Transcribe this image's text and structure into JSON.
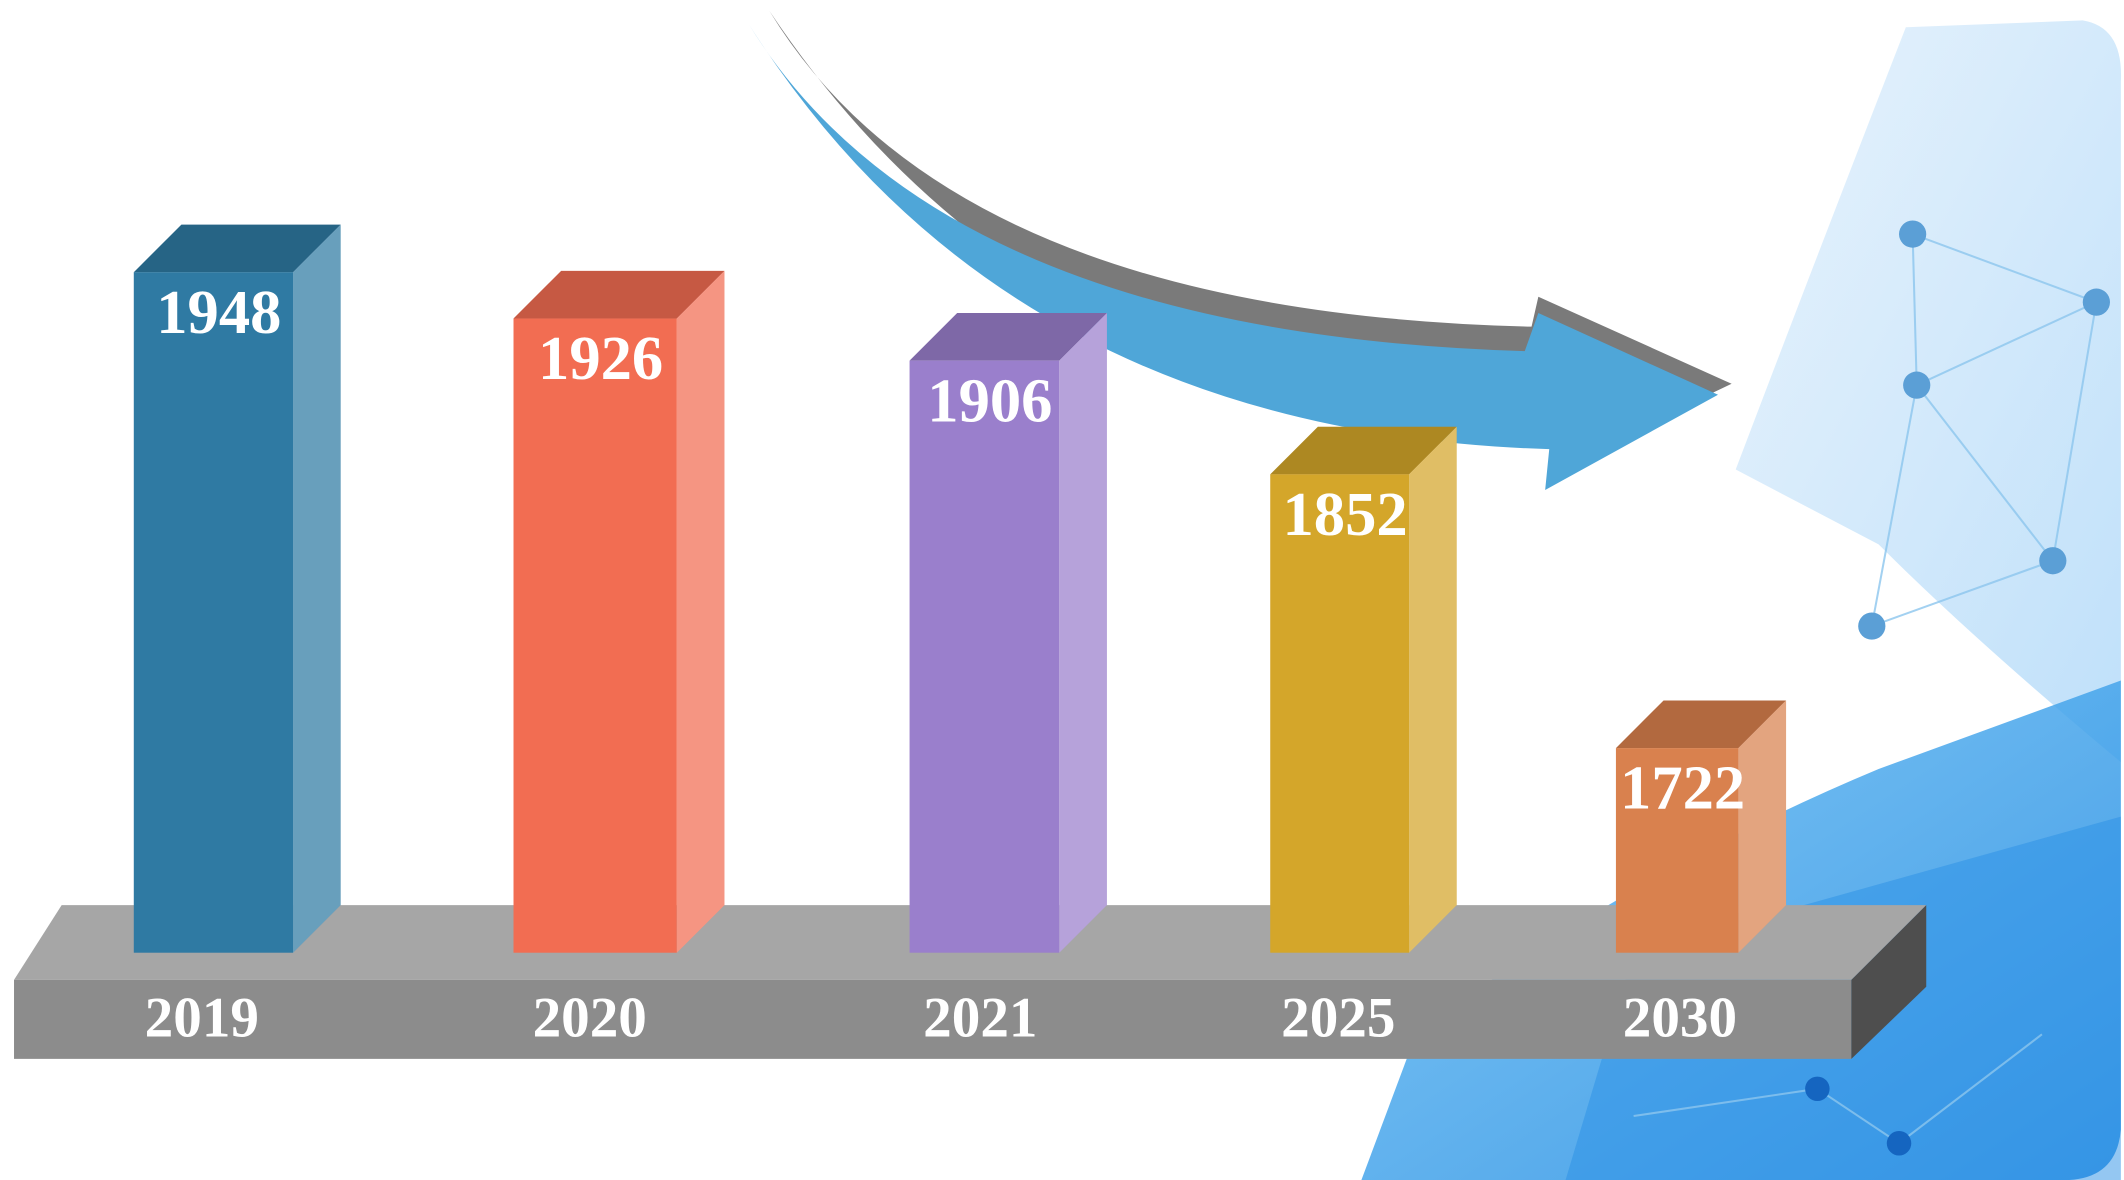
{
  "chart_data": {
    "type": "bar",
    "categories": [
      "2019",
      "2020",
      "2021",
      "2025",
      "2030"
    ],
    "values": [
      1948,
      1926,
      1906,
      1852,
      1722
    ],
    "colors": [
      "#2f7aa3",
      "#f26d52",
      "#9a7fcc",
      "#d4a62a",
      "#d9814e"
    ]
  }
}
